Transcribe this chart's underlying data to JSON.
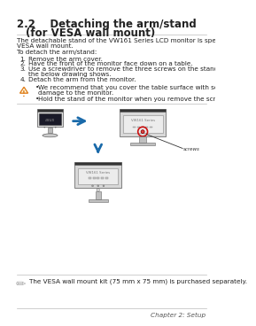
{
  "page_bg": "#ffffff",
  "title_line1": "2.2    Detaching the arm/stand",
  "title_line2": "         (for VESA wall mount)",
  "body_para": "The detachable stand of the VW161 Series LCD monitor is specially designed for VESA wall mount.",
  "body_para2": "To detach the arm/stand:",
  "steps": [
    [
      "1.",
      "Remove the arm cover."
    ],
    [
      "2.",
      "Have the front of the monitor face down on a table."
    ],
    [
      "3.",
      "Use a screwdriver to remove the three screws on the stand of the monitor as the below drawing shows."
    ],
    [
      "4.",
      "Detach the arm from the monitor."
    ]
  ],
  "warn_bullet1a": "We recommend that you cover the table surface with soft cloth to prevent",
  "warn_bullet1b": "damage to the monitor.",
  "warn_bullet2": "Hold the stand of the monitor when you remove the screws.",
  "screws_label": "screws",
  "note_text": "The VESA wall mount kit (75 mm x 75 mm) is purchased separately.",
  "footer_text": "Chapter 2: Setup",
  "text_color": "#222222",
  "warn_orange": "#e08020",
  "arrow_blue": "#1a6aaa",
  "monitor_dark": "#2a2a2a",
  "monitor_light": "#cccccc",
  "monitor_frame": "#888888",
  "red_circle": "#cc1111"
}
